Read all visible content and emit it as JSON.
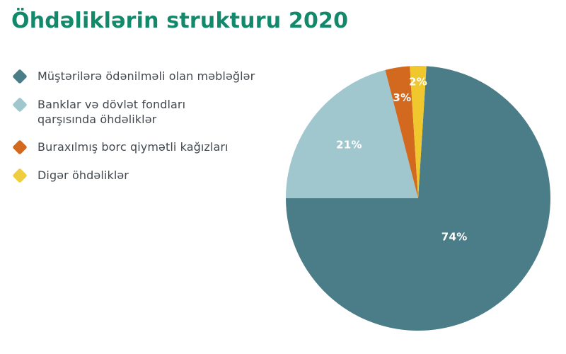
{
  "header": {
    "title": "Öhdəliklərin strukturu 2020",
    "title_color": "#12896b"
  },
  "legend": {
    "items": [
      {
        "label": "Müştərilərə ödənilməli olan məbləğlər",
        "color": "#4a7d87"
      },
      {
        "label": "Banklar və dövlət fondları\nqarşısında öhdəliklər",
        "color": "#9fc7cd"
      },
      {
        "label": "Buraxılmış borc qiymətli kağızları",
        "color": "#d2691e"
      },
      {
        "label": "Digər öhdəliklər",
        "color": "#eecd3e"
      }
    ]
  },
  "chart_data": {
    "type": "pie",
    "title": "Öhdəliklərin strukturu 2020",
    "categories": [
      "Müştərilərə ödənilməli olan məbləğlər",
      "Banklar və dövlət fondları qarşısında öhdəliklər",
      "Buraxılmış borc qiymətli kağızları",
      "Digər öhdəliklər"
    ],
    "values": [
      74,
      21,
      3,
      2
    ],
    "labels": [
      "74%",
      "21%",
      "3%",
      "2%"
    ],
    "colors": [
      "#4a7d87",
      "#9fc7cd",
      "#d2691e",
      "#f1c72e"
    ],
    "label_color": "#ffffff",
    "start_angle_deg": 3.6,
    "direction": "clockwise",
    "label_radius_fractions": [
      0.4,
      0.66,
      0.77,
      0.88
    ],
    "legend_position": "left",
    "grid": false
  }
}
